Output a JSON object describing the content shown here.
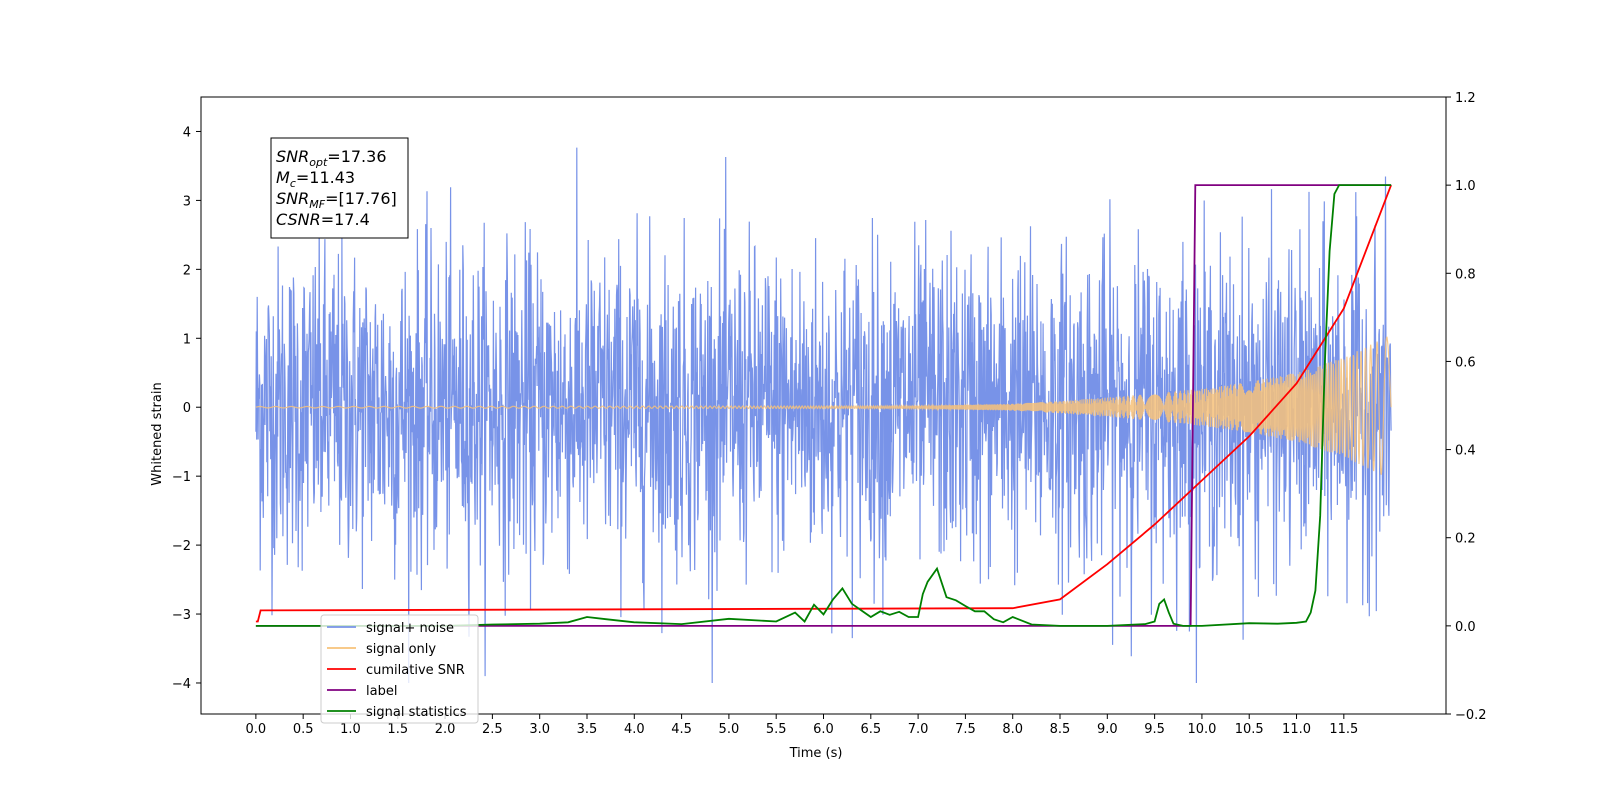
{
  "chart_data": {
    "type": "line",
    "title": "",
    "xlabel": "Time (s)",
    "ylabel": "Whitened strain",
    "xlim": [
      -0.58,
      12.58
    ],
    "ylim": [
      -4.45,
      4.5
    ],
    "y2lim": [
      -0.2,
      1.2
    ],
    "x_ticks": [
      "0.0",
      "0.5",
      "1.0",
      "1.5",
      "2.0",
      "2.5",
      "3.0",
      "3.5",
      "4.0",
      "4.5",
      "5.0",
      "5.5",
      "6.0",
      "6.5",
      "7.0",
      "7.5",
      "8.0",
      "8.5",
      "9.0",
      "9.5",
      "10.0",
      "10.5",
      "11.0",
      "11.5"
    ],
    "y_ticks": [
      "4",
      "3",
      "2",
      "1",
      "0",
      "−1",
      "−2",
      "−3",
      "−4"
    ],
    "y2_ticks": [
      "1.2",
      "1.0",
      "0.8",
      "0.6",
      "0.4",
      "0.2",
      "0.0",
      "−0.2"
    ],
    "grid": false,
    "legend_position": "lower-left",
    "info_box": [
      {
        "base": "SNR",
        "sub": "opt",
        "value": "=17.36"
      },
      {
        "base": "M",
        "sub": "c",
        "value": "=11.43"
      },
      {
        "base": "SNR",
        "sub": "MF",
        "value": "=[17.76]"
      },
      {
        "base": "CSNR",
        "sub": "",
        "value": "=17.4"
      }
    ],
    "series": [
      {
        "name": "signal+ noise",
        "axis": "left",
        "color": "#7893e8",
        "noise_sigma": 1.0,
        "x_range": [
          0.0,
          12.0
        ]
      },
      {
        "name": "signal only",
        "axis": "left",
        "color": "#f7c27a",
        "envelope_x": [
          0.0,
          7.0,
          8.0,
          8.5,
          9.0,
          9.5,
          10.0,
          10.5,
          11.0,
          11.5,
          12.0
        ],
        "envelope_y": [
          0.01,
          0.02,
          0.05,
          0.09,
          0.14,
          0.2,
          0.27,
          0.37,
          0.5,
          0.72,
          1.05
        ]
      },
      {
        "name": "cumilative SNR",
        "axis": "right",
        "color": "#ff0000",
        "x": [
          0.0,
          0.02,
          0.05,
          8.0,
          8.5,
          9.0,
          9.5,
          10.0,
          10.5,
          11.0,
          11.5,
          12.0
        ],
        "y": [
          0.01,
          0.01,
          0.035,
          0.04,
          0.06,
          0.14,
          0.23,
          0.33,
          0.43,
          0.55,
          0.72,
          1.0
        ]
      },
      {
        "name": "label",
        "axis": "right",
        "color": "#800080",
        "x": [
          0.0,
          9.88,
          9.93,
          12.0
        ],
        "y": [
          0.0,
          0.0,
          1.0,
          1.0
        ]
      },
      {
        "name": "signal statistics",
        "axis": "right",
        "color": "#008000",
        "x": [
          0.0,
          1.0,
          2.0,
          2.5,
          3.0,
          3.3,
          3.5,
          3.7,
          4.0,
          4.5,
          5.0,
          5.5,
          5.7,
          5.8,
          5.9,
          6.0,
          6.1,
          6.2,
          6.3,
          6.4,
          6.5,
          6.6,
          6.7,
          6.8,
          6.9,
          7.0,
          7.05,
          7.1,
          7.2,
          7.3,
          7.4,
          7.5,
          7.6,
          7.7,
          7.8,
          7.9,
          8.0,
          8.2,
          8.5,
          9.0,
          9.4,
          9.5,
          9.55,
          9.6,
          9.65,
          9.7,
          9.8,
          10.0,
          10.5,
          10.8,
          11.0,
          11.1,
          11.15,
          11.2,
          11.25,
          11.3,
          11.35,
          11.4,
          11.45,
          11.5,
          11.6,
          12.0
        ],
        "y": [
          0.0,
          0.0,
          0.0,
          0.003,
          0.005,
          0.008,
          0.02,
          0.015,
          0.008,
          0.004,
          0.016,
          0.01,
          0.03,
          0.01,
          0.048,
          0.026,
          0.06,
          0.085,
          0.05,
          0.035,
          0.02,
          0.033,
          0.025,
          0.032,
          0.02,
          0.02,
          0.072,
          0.1,
          0.13,
          0.065,
          0.058,
          0.045,
          0.033,
          0.033,
          0.015,
          0.008,
          0.02,
          0.003,
          0.0,
          0.0,
          0.004,
          0.01,
          0.05,
          0.06,
          0.03,
          0.005,
          0.0,
          0.0,
          0.006,
          0.005,
          0.007,
          0.01,
          0.03,
          0.08,
          0.25,
          0.6,
          0.85,
          0.98,
          1.0,
          1.0,
          1.0,
          1.0
        ]
      }
    ]
  }
}
